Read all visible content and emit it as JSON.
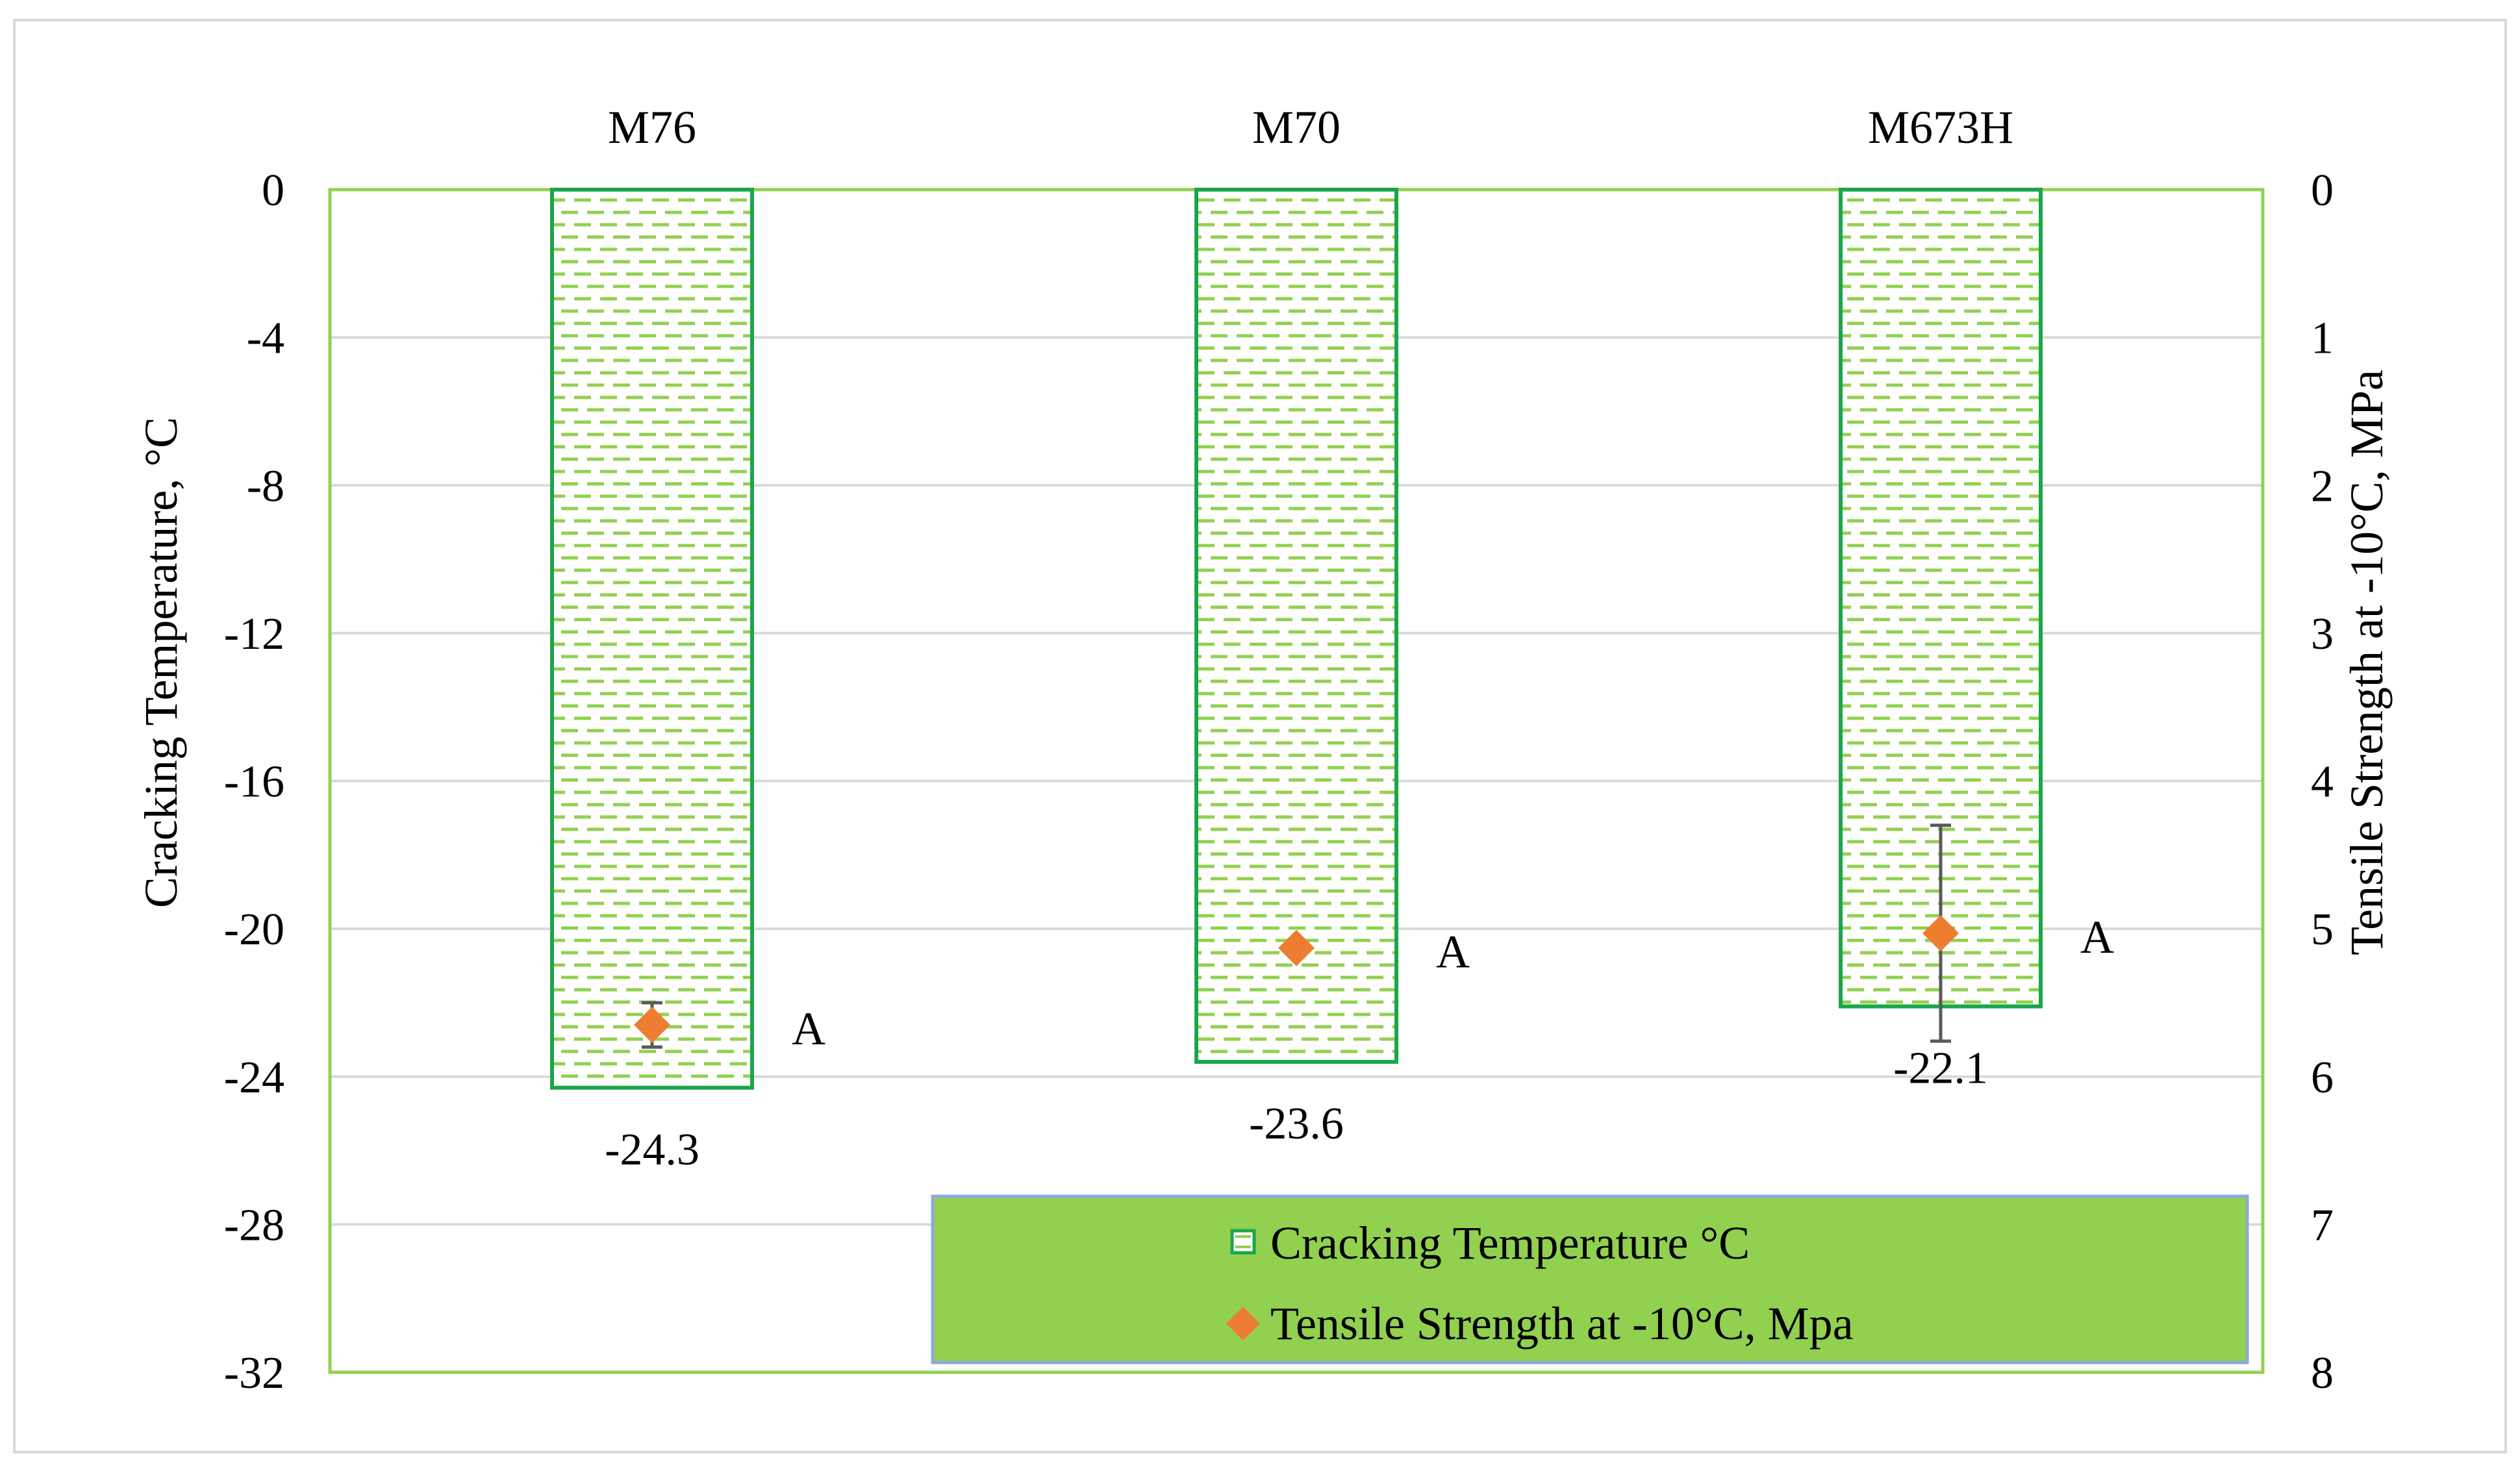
{
  "chart_data": {
    "type": "bar",
    "categories": [
      "M76",
      "M70",
      "M673H"
    ],
    "series": [
      {
        "name": "Cracking Temperature °C",
        "type": "bar",
        "axis": "left",
        "values": [
          -24.3,
          -23.6,
          -22.1
        ],
        "data_labels": [
          "-24.3",
          "-23.6",
          "-22.1"
        ],
        "fill": "dashed-green-pattern"
      },
      {
        "name": "Tensile Strength at -10°C, Mpa",
        "type": "scatter",
        "axis": "right",
        "values": [
          5.65,
          5.13,
          5.03
        ],
        "error_bars": [
          0.15,
          0.0,
          0.73
        ],
        "data_labels": [
          "A",
          "A",
          "A"
        ],
        "marker": "diamond"
      }
    ],
    "y_left": {
      "label": "Cracking Temperature, °C",
      "ylim": [
        -32,
        0
      ],
      "ticks": [
        0,
        -4,
        -8,
        -12,
        -16,
        -20,
        -24,
        -28,
        -32
      ],
      "tick_labels": [
        "0",
        "-4",
        "-8",
        "-12",
        "-16",
        "-20",
        "-24",
        "-28",
        "-32"
      ]
    },
    "y_right": {
      "label": "Tensile Strength at -10°C, MPa",
      "ylim": [
        0,
        8
      ],
      "reversed": true,
      "ticks": [
        0,
        1,
        2,
        3,
        4,
        5,
        6,
        7,
        8
      ],
      "tick_labels": [
        "0",
        "1",
        "2",
        "3",
        "4",
        "5",
        "6",
        "7",
        "8"
      ]
    },
    "x_axis_position": "top",
    "grid": true,
    "legend": {
      "position": "bottom-right",
      "entries": [
        "Cracking Temperature °C",
        "Tensile Strength at -10°C, Mpa"
      ]
    },
    "colors": {
      "bar_stroke": "#1aa64a",
      "bar_dash": "#92d050",
      "marker": "#ed7d31",
      "error_bar": "#595959",
      "gridline": "#d9d9d9",
      "plot_border": "#92d050",
      "legend_fill": "#92d050",
      "legend_border": "#8ea9db"
    }
  }
}
